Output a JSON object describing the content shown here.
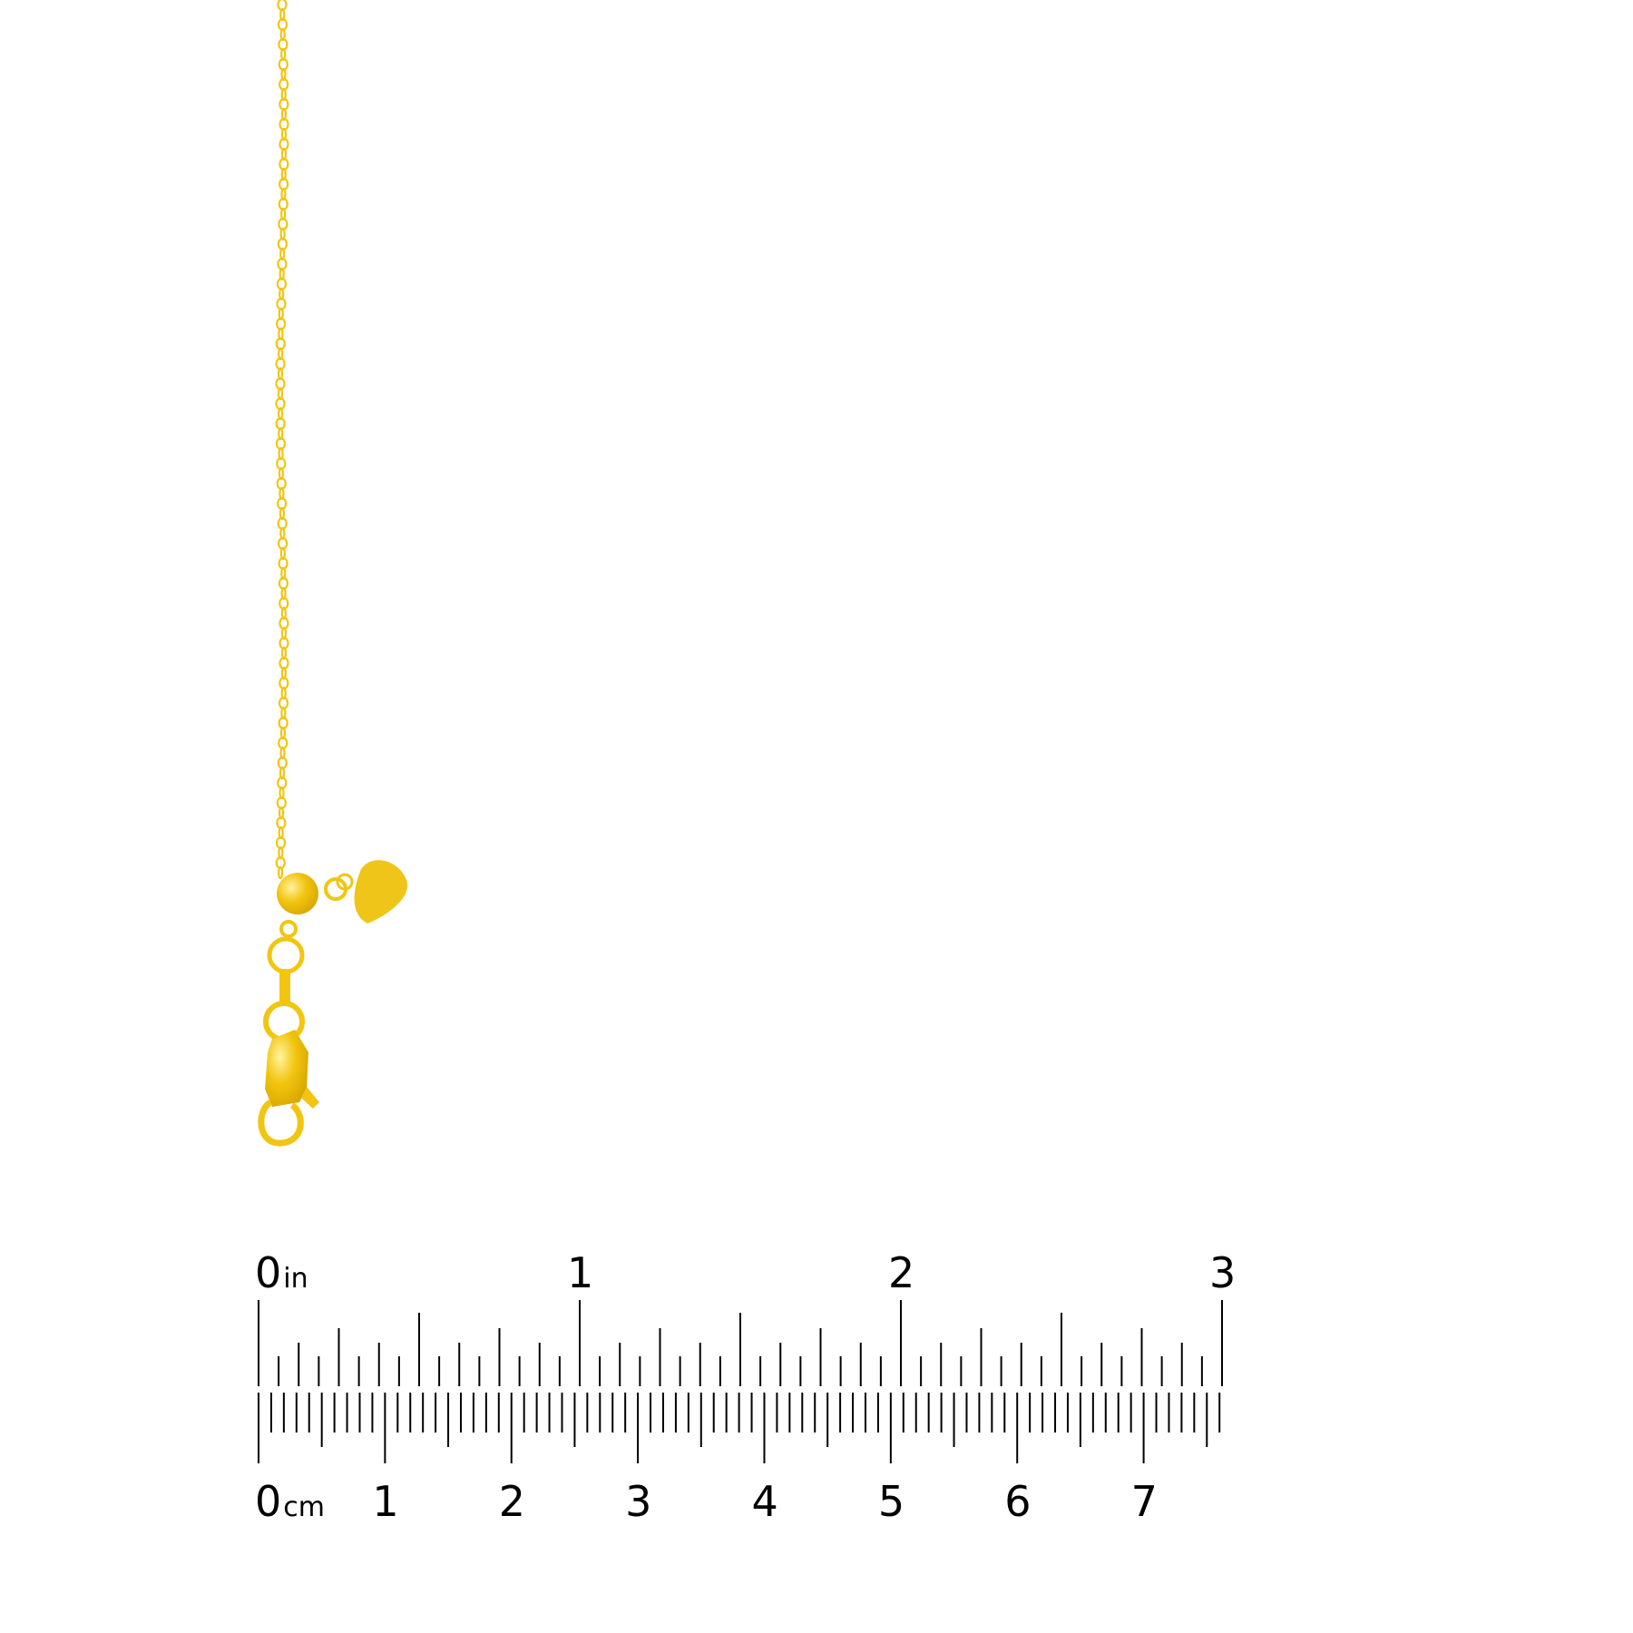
{
  "product": {
    "metal_color": "#F2C511",
    "items": [
      "chain",
      "adjustable-bead",
      "heart-charm",
      "lobster-clasp"
    ]
  },
  "ruler": {
    "inch_labels": [
      "0",
      "1",
      "2",
      "3"
    ],
    "inch_unit": "in",
    "cm_labels": [
      "0",
      "1",
      "2",
      "3",
      "4",
      "5",
      "6",
      "7"
    ],
    "cm_unit": "cm",
    "inch_max": 3,
    "cm_max": 7.6,
    "tick_color": "#000000"
  }
}
